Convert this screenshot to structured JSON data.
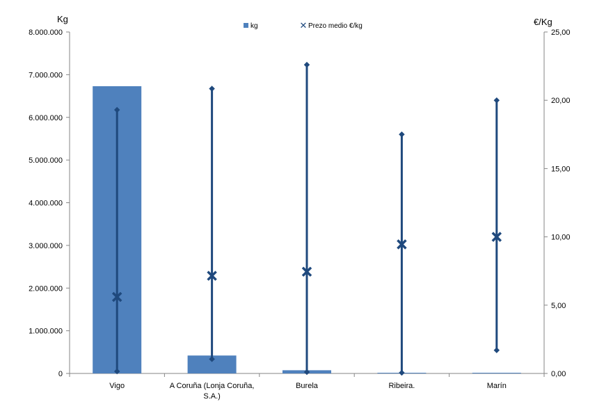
{
  "chart_data": {
    "type": "bar",
    "categories": [
      "Vigo",
      "A Coruña (Lonja Coruña,\nS.A.)",
      "Burela",
      "Ribeira.",
      "Marín"
    ],
    "left_axis": {
      "title": "Kg",
      "ylim": [
        0,
        8000000
      ],
      "ticks": [
        0,
        1000000,
        2000000,
        3000000,
        4000000,
        5000000,
        6000000,
        7000000,
        8000000
      ],
      "tick_labels": [
        "0",
        "1.000.000",
        "2.000.000",
        "3.000.000",
        "4.000.000",
        "5.000.000",
        "6.000.000",
        "7.000.000",
        "8.000.000"
      ]
    },
    "right_axis": {
      "title": "€/Kg",
      "ylim": [
        0,
        25
      ],
      "ticks": [
        0,
        5,
        10,
        15,
        20,
        25
      ],
      "tick_labels": [
        "0,00",
        "5,00",
        "10,00",
        "15,00",
        "20,00",
        "25,00"
      ]
    },
    "series": [
      {
        "name": "kg",
        "kind": "bar",
        "axis": "left",
        "color": "#4F81BD",
        "values": [
          6730000,
          420000,
          75000,
          8000,
          5000
        ]
      },
      {
        "name": "Prezo medio €/kg",
        "kind": "hi-lo-marker",
        "axis": "right",
        "color": "#1F497D",
        "values": [
          5.6,
          7.15,
          7.45,
          9.45,
          10.0
        ],
        "high": [
          19.3,
          20.85,
          22.6,
          17.5,
          20.0
        ],
        "low": [
          0.15,
          1.05,
          0.1,
          0.05,
          1.7
        ]
      }
    ],
    "legend": {
      "position": "top",
      "entries": [
        "kg",
        "Prezo medio €/kg"
      ]
    },
    "grid": false
  }
}
